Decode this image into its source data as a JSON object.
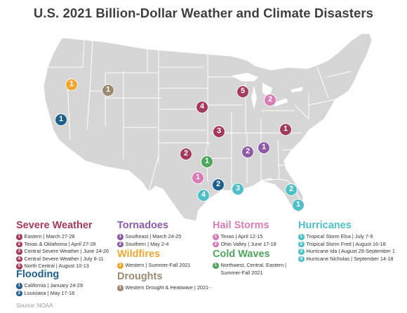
{
  "title": "U.S. 2021 Billion-Dollar Weather and Climate Disasters",
  "colors": {
    "severe_weather": "#a63a5e",
    "flooding": "#1f5f8e",
    "tornadoes": "#8e5aa8",
    "wildfires": "#f2a732",
    "droughts": "#9c8a70",
    "hail_storms": "#d87bb7",
    "cold_waves": "#4ea55c",
    "hurricanes": "#4fc0c7",
    "land": "#d6d6d6",
    "border": "#ffffff"
  },
  "map_markers": [
    {
      "category": "severe_weather",
      "number": "1",
      "name": "Eastern"
    },
    {
      "category": "severe_weather",
      "number": "2",
      "name": "Texas & Oklahoma"
    },
    {
      "category": "severe_weather",
      "number": "3",
      "name": "Central Severe Weather"
    },
    {
      "category": "severe_weather",
      "number": "4",
      "name": "Central Severe Weather"
    },
    {
      "category": "severe_weather",
      "number": "5",
      "name": "North Central"
    },
    {
      "category": "flooding",
      "number": "1",
      "name": "California"
    },
    {
      "category": "flooding",
      "number": "2",
      "name": "Louisiana"
    },
    {
      "category": "tornadoes",
      "number": "1",
      "name": "Southeast"
    },
    {
      "category": "tornadoes",
      "number": "2",
      "name": "Southern"
    },
    {
      "category": "wildfires",
      "number": "1",
      "name": "Western"
    },
    {
      "category": "droughts",
      "number": "1",
      "name": "Western Drought & Heatwave"
    },
    {
      "category": "hail_storms",
      "number": "1",
      "name": "Texas"
    },
    {
      "category": "hail_storms",
      "number": "2",
      "name": "Ohio Valley"
    },
    {
      "category": "cold_waves",
      "number": "1",
      "name": "Northwest, Central, Eastern"
    },
    {
      "category": "hurricanes",
      "number": "1",
      "name": "Tropical Storm Elsa"
    },
    {
      "category": "hurricanes",
      "number": "2",
      "name": "Tropical Storm Fred"
    },
    {
      "category": "hurricanes",
      "number": "3",
      "name": "Hurricane Ida"
    },
    {
      "category": "hurricanes",
      "number": "4",
      "name": "Hurricane Nicholas"
    }
  ],
  "legend": {
    "severe_weather": {
      "title": "Severe Weather",
      "items": [
        {
          "num": "1",
          "text": "Eastern | March 27-28"
        },
        {
          "num": "2",
          "text": "Texas & Oklahoma | April 27-28"
        },
        {
          "num": "3",
          "text": "Central Severe Weather | June 24-26"
        },
        {
          "num": "4",
          "text": "Central Severe Weather | July 8-11"
        },
        {
          "num": "5",
          "text": "North Central | August 10-13"
        }
      ]
    },
    "flooding": {
      "title": "Flooding",
      "items": [
        {
          "num": "1",
          "text": "California | January 24-29"
        },
        {
          "num": "2",
          "text": "Louisiana | May 17-18"
        }
      ]
    },
    "tornadoes": {
      "title": "Tornadoes",
      "items": [
        {
          "num": "1",
          "text": "Southeast | March 24-25"
        },
        {
          "num": "2",
          "text": "Southern | May 2-4"
        }
      ]
    },
    "wildfires": {
      "title": "Wildfires",
      "items": [
        {
          "num": "1",
          "text": "Western | Summer-Fall 2021"
        }
      ]
    },
    "droughts": {
      "title": "Droughts",
      "items": [
        {
          "num": "1",
          "text": "Western Drought & Heatwave | 2021-"
        }
      ]
    },
    "hail_storms": {
      "title": "Hail Storms",
      "items": [
        {
          "num": "1",
          "text": "Texas | April 12-15"
        },
        {
          "num": "2",
          "text": "Ohio Valley | June 17-18"
        }
      ]
    },
    "cold_waves": {
      "title": "Cold Waves",
      "items": [
        {
          "num": "1",
          "text": "Northwest, Central, Eastern | Summer-Fall 2021"
        }
      ]
    },
    "hurricanes": {
      "title": "Hurricanes",
      "items": [
        {
          "num": "1",
          "text": "Tropical Storm Elsa | July 7-9"
        },
        {
          "num": "2",
          "text": "Tropical Storm Fred | August 16-18"
        },
        {
          "num": "3",
          "text": "Hurricane Ida | August 29-September 1"
        },
        {
          "num": "4",
          "text": "Hurricane Nicholas | September 14-18"
        }
      ]
    }
  },
  "source": "Source: NOAA"
}
